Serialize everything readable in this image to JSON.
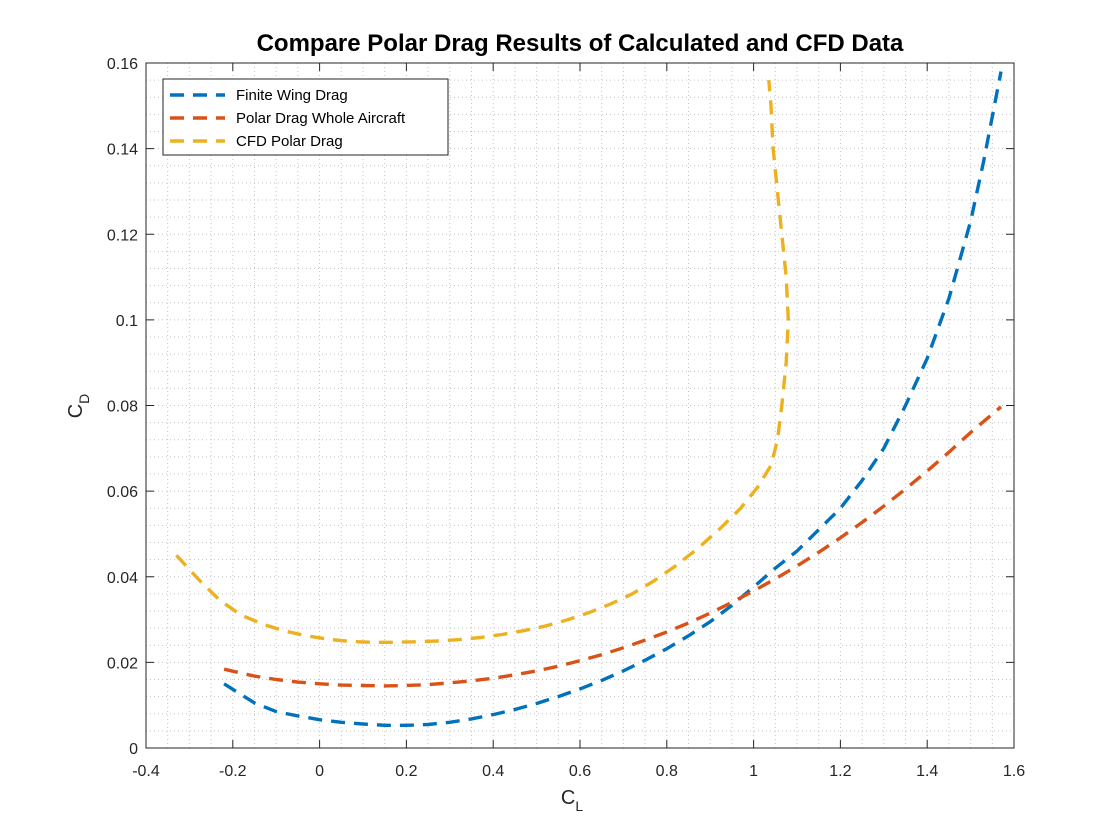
{
  "chart_data": {
    "type": "line",
    "title": "Compare Polar Drag Results of Calculated and CFD Data",
    "xlabel": "C",
    "xlabel_sub": "L",
    "ylabel": "C",
    "ylabel_sub": "D",
    "xlim": [
      -0.4,
      1.6
    ],
    "ylim": [
      0,
      0.16
    ],
    "xticks": [
      -0.4,
      -0.2,
      0,
      0.2,
      0.4,
      0.6,
      0.8,
      1,
      1.2,
      1.4,
      1.6
    ],
    "xtick_labels": [
      "-0.4",
      "-0.2",
      "0",
      "0.2",
      "0.4",
      "0.6",
      "0.8",
      "1",
      "1.2",
      "1.4",
      "1.6"
    ],
    "yticks": [
      0,
      0.02,
      0.04,
      0.06,
      0.08,
      0.1,
      0.12,
      0.14,
      0.16
    ],
    "ytick_labels": [
      "0",
      "0.02",
      "0.04",
      "0.06",
      "0.08",
      "0.1",
      "0.12",
      "0.14",
      "0.16"
    ],
    "grid": "minor-dotted",
    "legend_position": "top-left",
    "series": [
      {
        "name": "Finite Wing Drag",
        "color": "#0072BD",
        "line_style": "dashed",
        "x": [
          -0.22,
          -0.15,
          -0.1,
          -0.05,
          0.0,
          0.05,
          0.1,
          0.15,
          0.2,
          0.25,
          0.3,
          0.35,
          0.4,
          0.45,
          0.5,
          0.55,
          0.6,
          0.65,
          0.7,
          0.75,
          0.8,
          0.85,
          0.9,
          0.95,
          1.0,
          1.05,
          1.1,
          1.15,
          1.2,
          1.25,
          1.3,
          1.35,
          1.4,
          1.45,
          1.5,
          1.53,
          1.57
        ],
        "y": [
          0.015,
          0.0105,
          0.0085,
          0.0075,
          0.0066,
          0.006,
          0.0056,
          0.0053,
          0.0053,
          0.0055,
          0.006,
          0.0068,
          0.0078,
          0.009,
          0.0104,
          0.012,
          0.0138,
          0.0158,
          0.018,
          0.0205,
          0.0232,
          0.0262,
          0.0295,
          0.0333,
          0.0376,
          0.042,
          0.046,
          0.051,
          0.056,
          0.0625,
          0.07,
          0.08,
          0.091,
          0.105,
          0.123,
          0.137,
          0.158
        ]
      },
      {
        "name": "Polar Drag Whole Aircraft",
        "color": "#D95319",
        "line_style": "dashed",
        "x": [
          -0.22,
          -0.15,
          -0.1,
          -0.05,
          0.0,
          0.05,
          0.1,
          0.15,
          0.2,
          0.25,
          0.3,
          0.35,
          0.4,
          0.45,
          0.5,
          0.55,
          0.6,
          0.65,
          0.7,
          0.75,
          0.8,
          0.85,
          0.9,
          0.95,
          1.0,
          1.05,
          1.1,
          1.15,
          1.2,
          1.25,
          1.3,
          1.35,
          1.4,
          1.45,
          1.5,
          1.57
        ],
        "y": [
          0.0184,
          0.0168,
          0.016,
          0.0154,
          0.015,
          0.0147,
          0.0146,
          0.0145,
          0.0146,
          0.0148,
          0.0152,
          0.0157,
          0.0163,
          0.0171,
          0.018,
          0.0191,
          0.0204,
          0.0218,
          0.0234,
          0.0252,
          0.0271,
          0.0292,
          0.0315,
          0.034,
          0.0367,
          0.0395,
          0.0425,
          0.0457,
          0.0491,
          0.0527,
          0.0565,
          0.0605,
          0.0647,
          0.0691,
          0.0737,
          0.0797
        ]
      },
      {
        "name": "CFD Polar Drag",
        "color": "#EDB120",
        "line_style": "dashed",
        "x": [
          -0.33,
          -0.28,
          -0.23,
          -0.18,
          -0.13,
          -0.08,
          -0.03,
          0.02,
          0.07,
          0.12,
          0.17,
          0.22,
          0.27,
          0.32,
          0.37,
          0.42,
          0.47,
          0.52,
          0.57,
          0.62,
          0.67,
          0.72,
          0.77,
          0.82,
          0.87,
          0.92,
          0.97,
          1.01,
          1.04,
          1.055,
          1.065,
          1.075,
          1.08,
          1.075,
          1.06,
          1.045,
          1.04,
          1.035
        ],
        "y": [
          0.045,
          0.0395,
          0.0345,
          0.031,
          0.0289,
          0.0273,
          0.0262,
          0.0254,
          0.0249,
          0.0247,
          0.0247,
          0.0248,
          0.025,
          0.0253,
          0.0258,
          0.0265,
          0.0274,
          0.0285,
          0.0299,
          0.0316,
          0.0336,
          0.036,
          0.039,
          0.0425,
          0.0465,
          0.051,
          0.056,
          0.061,
          0.066,
          0.072,
          0.08,
          0.09,
          0.1,
          0.11,
          0.125,
          0.14,
          0.15,
          0.156
        ]
      }
    ]
  }
}
